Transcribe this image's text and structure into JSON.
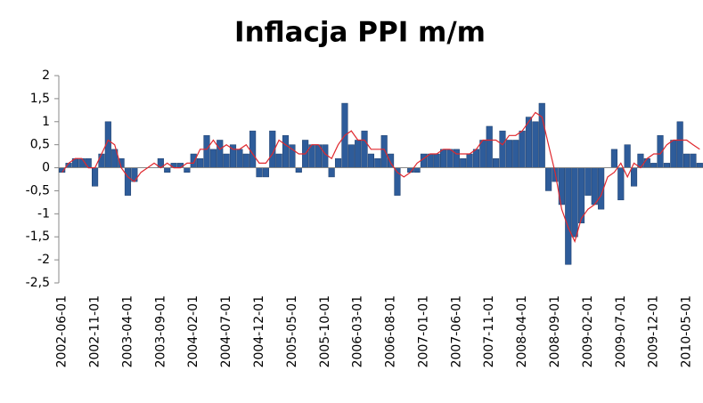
{
  "chart_data": {
    "type": "bar",
    "title": "Inflacja PPI m/m",
    "categories": [
      "2002-06-01",
      null,
      null,
      null,
      null,
      "2002-11-01",
      null,
      null,
      null,
      null,
      "2003-04-01",
      null,
      null,
      null,
      null,
      "2003-09-01",
      null,
      null,
      null,
      null,
      "2004-02-01",
      null,
      null,
      null,
      null,
      "2004-07-01",
      null,
      null,
      null,
      null,
      "2004-12-01",
      null,
      null,
      null,
      null,
      "2005-05-01",
      null,
      null,
      null,
      null,
      "2005-10-01",
      null,
      null,
      null,
      null,
      "2006-03-01",
      null,
      null,
      null,
      null,
      "2006-08-01",
      null,
      null,
      null,
      null,
      "2007-01-01",
      null,
      null,
      null,
      null,
      "2007-06-01",
      null,
      null,
      null,
      null,
      "2007-11-01",
      null,
      null,
      null,
      null,
      "2008-04-01",
      null,
      null,
      null,
      null,
      "2008-09-01",
      null,
      null,
      null,
      null,
      "2009-02-01",
      null,
      null,
      null,
      null,
      "2009-07-01",
      null,
      null,
      null,
      null,
      "2009-12-01",
      null,
      null,
      null,
      null,
      "2010-05-01",
      null,
      null
    ],
    "series": [
      {
        "color": "#2e5c9a",
        "values": [
          -0.1,
          0.1,
          0.2,
          0.2,
          0.2,
          -0.4,
          0.3,
          1.0,
          0.4,
          0.2,
          -0.6,
          -0.3,
          0.0,
          0.0,
          0.0,
          0.2,
          -0.1,
          0.1,
          0.1,
          -0.1,
          0.3,
          0.2,
          0.7,
          0.4,
          0.6,
          0.3,
          0.5,
          0.4,
          0.3,
          0.8,
          -0.2,
          -0.2,
          0.8,
          0.3,
          0.7,
          0.5,
          -0.1,
          0.6,
          0.5,
          0.5,
          0.5,
          -0.2,
          0.2,
          1.4,
          0.5,
          0.6,
          0.8,
          0.3,
          0.2,
          0.7,
          0.3,
          -0.6,
          0.0,
          -0.1,
          -0.1,
          0.3,
          0.3,
          0.3,
          0.4,
          0.4,
          0.4,
          0.2,
          0.3,
          0.4,
          0.6,
          0.9,
          0.2,
          0.8,
          0.6,
          0.6,
          0.8,
          1.1,
          1.0,
          1.4,
          -0.5,
          -0.3,
          -0.8,
          -2.1,
          -1.5,
          -1.2,
          -0.6,
          -0.8,
          -0.9,
          0.0,
          0.4,
          -0.7,
          0.5,
          -0.4,
          0.3,
          0.2,
          0.1,
          0.7,
          0.1,
          0.6,
          1.0,
          0.3,
          0.3,
          0.1
        ]
      },
      {
        "type": "line",
        "color": "#e0282e",
        "values": [
          -0.1,
          0.1,
          0.2,
          0.2,
          0.0,
          0.0,
          0.3,
          0.6,
          0.5,
          0.0,
          -0.2,
          -0.3,
          -0.1,
          0.0,
          0.1,
          0.0,
          0.1,
          0.0,
          0.0,
          0.1,
          0.1,
          0.4,
          0.4,
          0.6,
          0.4,
          0.5,
          0.4,
          0.4,
          0.5,
          0.3,
          0.1,
          0.1,
          0.3,
          0.6,
          0.5,
          0.4,
          0.3,
          0.3,
          0.5,
          0.5,
          0.3,
          0.2,
          0.5,
          0.7,
          0.8,
          0.6,
          0.6,
          0.4,
          0.4,
          0.4,
          0.1,
          -0.1,
          -0.2,
          -0.1,
          0.1,
          0.2,
          0.3,
          0.3,
          0.4,
          0.4,
          0.3,
          0.3,
          0.3,
          0.4,
          0.6,
          0.6,
          0.6,
          0.5,
          0.7,
          0.7,
          0.8,
          1.0,
          1.2,
          1.1,
          0.5,
          -0.1,
          -0.9,
          -1.3,
          -1.6,
          -1.1,
          -0.9,
          -0.8,
          -0.6,
          -0.2,
          -0.1,
          0.1,
          -0.2,
          0.1,
          0.0,
          0.2,
          0.3,
          0.3,
          0.5,
          0.6,
          0.6,
          0.6,
          0.5,
          0.4
        ]
      }
    ],
    "ylim": [
      -2.5,
      2
    ],
    "yticks": [
      {
        "value": -2.5,
        "label": "-2,5"
      },
      -2,
      {
        "value": -1.5,
        "label": "-1,5"
      },
      -1,
      {
        "value": -0.5,
        "label": "-0,5"
      },
      0,
      {
        "value": 0.5,
        "label": "0,5"
      },
      1,
      {
        "value": 1.5,
        "label": "1,5"
      },
      2
    ]
  }
}
